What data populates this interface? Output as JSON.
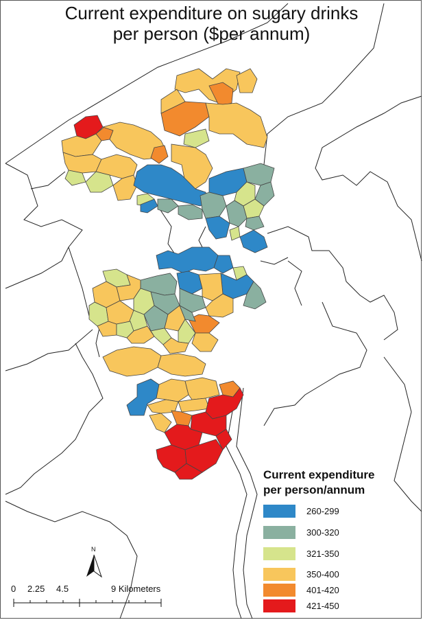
{
  "title": {
    "line1": "Current expenditure on sugary drinks",
    "line2": "per person ($per annum)"
  },
  "legend": {
    "title_line1": "Current expenditure",
    "title_line2": "per person/annum",
    "classes": [
      {
        "label": "260-299",
        "color": "#2e88c8"
      },
      {
        "label": "300-320",
        "color": "#8ab0a0"
      },
      {
        "label": "321-350",
        "color": "#d6e48c"
      },
      {
        "label": "350-400",
        "color": "#f8c65c"
      },
      {
        "label": "401-420",
        "color": "#f28a2e"
      },
      {
        "label": "421-450",
        "color": "#e41a1c"
      }
    ]
  },
  "scale_bar": {
    "ticks": [
      "0",
      "2.25",
      "4.5",
      "9 Kilometers"
    ]
  },
  "north_arrow": {
    "label": "N",
    "icon": "north-arrow-icon"
  }
}
